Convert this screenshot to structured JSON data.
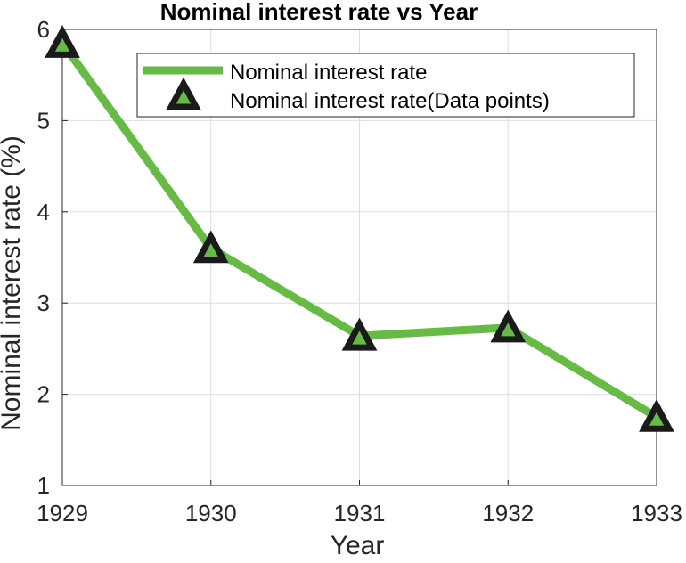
{
  "chart_data": {
    "type": "line",
    "title": "Nominal interest rate vs Year",
    "xlabel": "Year",
    "ylabel": "Nominal interest rate (%)",
    "x": [
      1929,
      1930,
      1931,
      1932,
      1933
    ],
    "xlim": [
      1929,
      1933
    ],
    "ylim": [
      1,
      6
    ],
    "xticks": [
      "1929",
      "1930",
      "1931",
      "1932",
      "1933"
    ],
    "yticks": [
      "1",
      "2",
      "3",
      "4",
      "5",
      "6"
    ],
    "grid": true,
    "legend_position": "top-right",
    "series": [
      {
        "name": "Nominal interest rate",
        "values": [
          5.85,
          3.6,
          2.64,
          2.73,
          1.75
        ],
        "color": "#66bb44",
        "style": "line"
      },
      {
        "name": "Nominal interest rate(Data points)",
        "values": [
          5.85,
          3.6,
          2.64,
          2.73,
          1.75
        ],
        "color": "#000000",
        "marker": "triangle-up",
        "style": "markers"
      }
    ]
  }
}
